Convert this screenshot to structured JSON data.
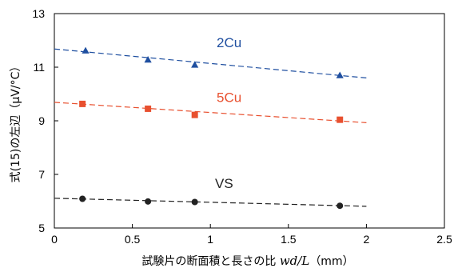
{
  "chart_data": {
    "type": "scatter",
    "xlabel": {
      "prefix": "試験片の断面積と長さの比 ",
      "variable": "wd/L",
      "unit": "（mm）"
    },
    "ylabel": "式(15)の左辺（μV/°C）",
    "xlim": [
      0,
      2.5
    ],
    "ylim": [
      5,
      13
    ],
    "xticks": [
      "0",
      "0.5",
      "1",
      "1.5",
      "2",
      "2.5"
    ],
    "yticks": [
      "5",
      "7",
      "9",
      "11",
      "13"
    ],
    "xtick_values": [
      0,
      0.5,
      1,
      1.5,
      2,
      2.5
    ],
    "ytick_values": [
      5,
      7,
      9,
      11,
      13
    ],
    "grid": false,
    "series": [
      {
        "name": "2Cu",
        "color": "#1f4fa0",
        "marker": "triangle",
        "x": [
          0.2,
          0.6,
          0.9,
          1.83
        ],
        "y": [
          11.62,
          11.28,
          11.09,
          10.7
        ],
        "trend": {
          "x": [
            0,
            2
          ],
          "y": [
            11.68,
            10.6
          ]
        }
      },
      {
        "name": "5Cu",
        "color": "#e8502f",
        "marker": "square",
        "x": [
          0.18,
          0.6,
          0.9,
          1.83
        ],
        "y": [
          9.63,
          9.45,
          9.22,
          9.04
        ],
        "trend": {
          "x": [
            0,
            2
          ],
          "y": [
            9.69,
            8.93
          ]
        }
      },
      {
        "name": "VS",
        "color": "#222222",
        "marker": "circle",
        "x": [
          0.18,
          0.6,
          0.9,
          1.83
        ],
        "y": [
          6.09,
          5.99,
          5.97,
          5.83
        ],
        "trend": {
          "x": [
            0,
            2
          ],
          "y": [
            6.11,
            5.81
          ]
        }
      }
    ]
  }
}
